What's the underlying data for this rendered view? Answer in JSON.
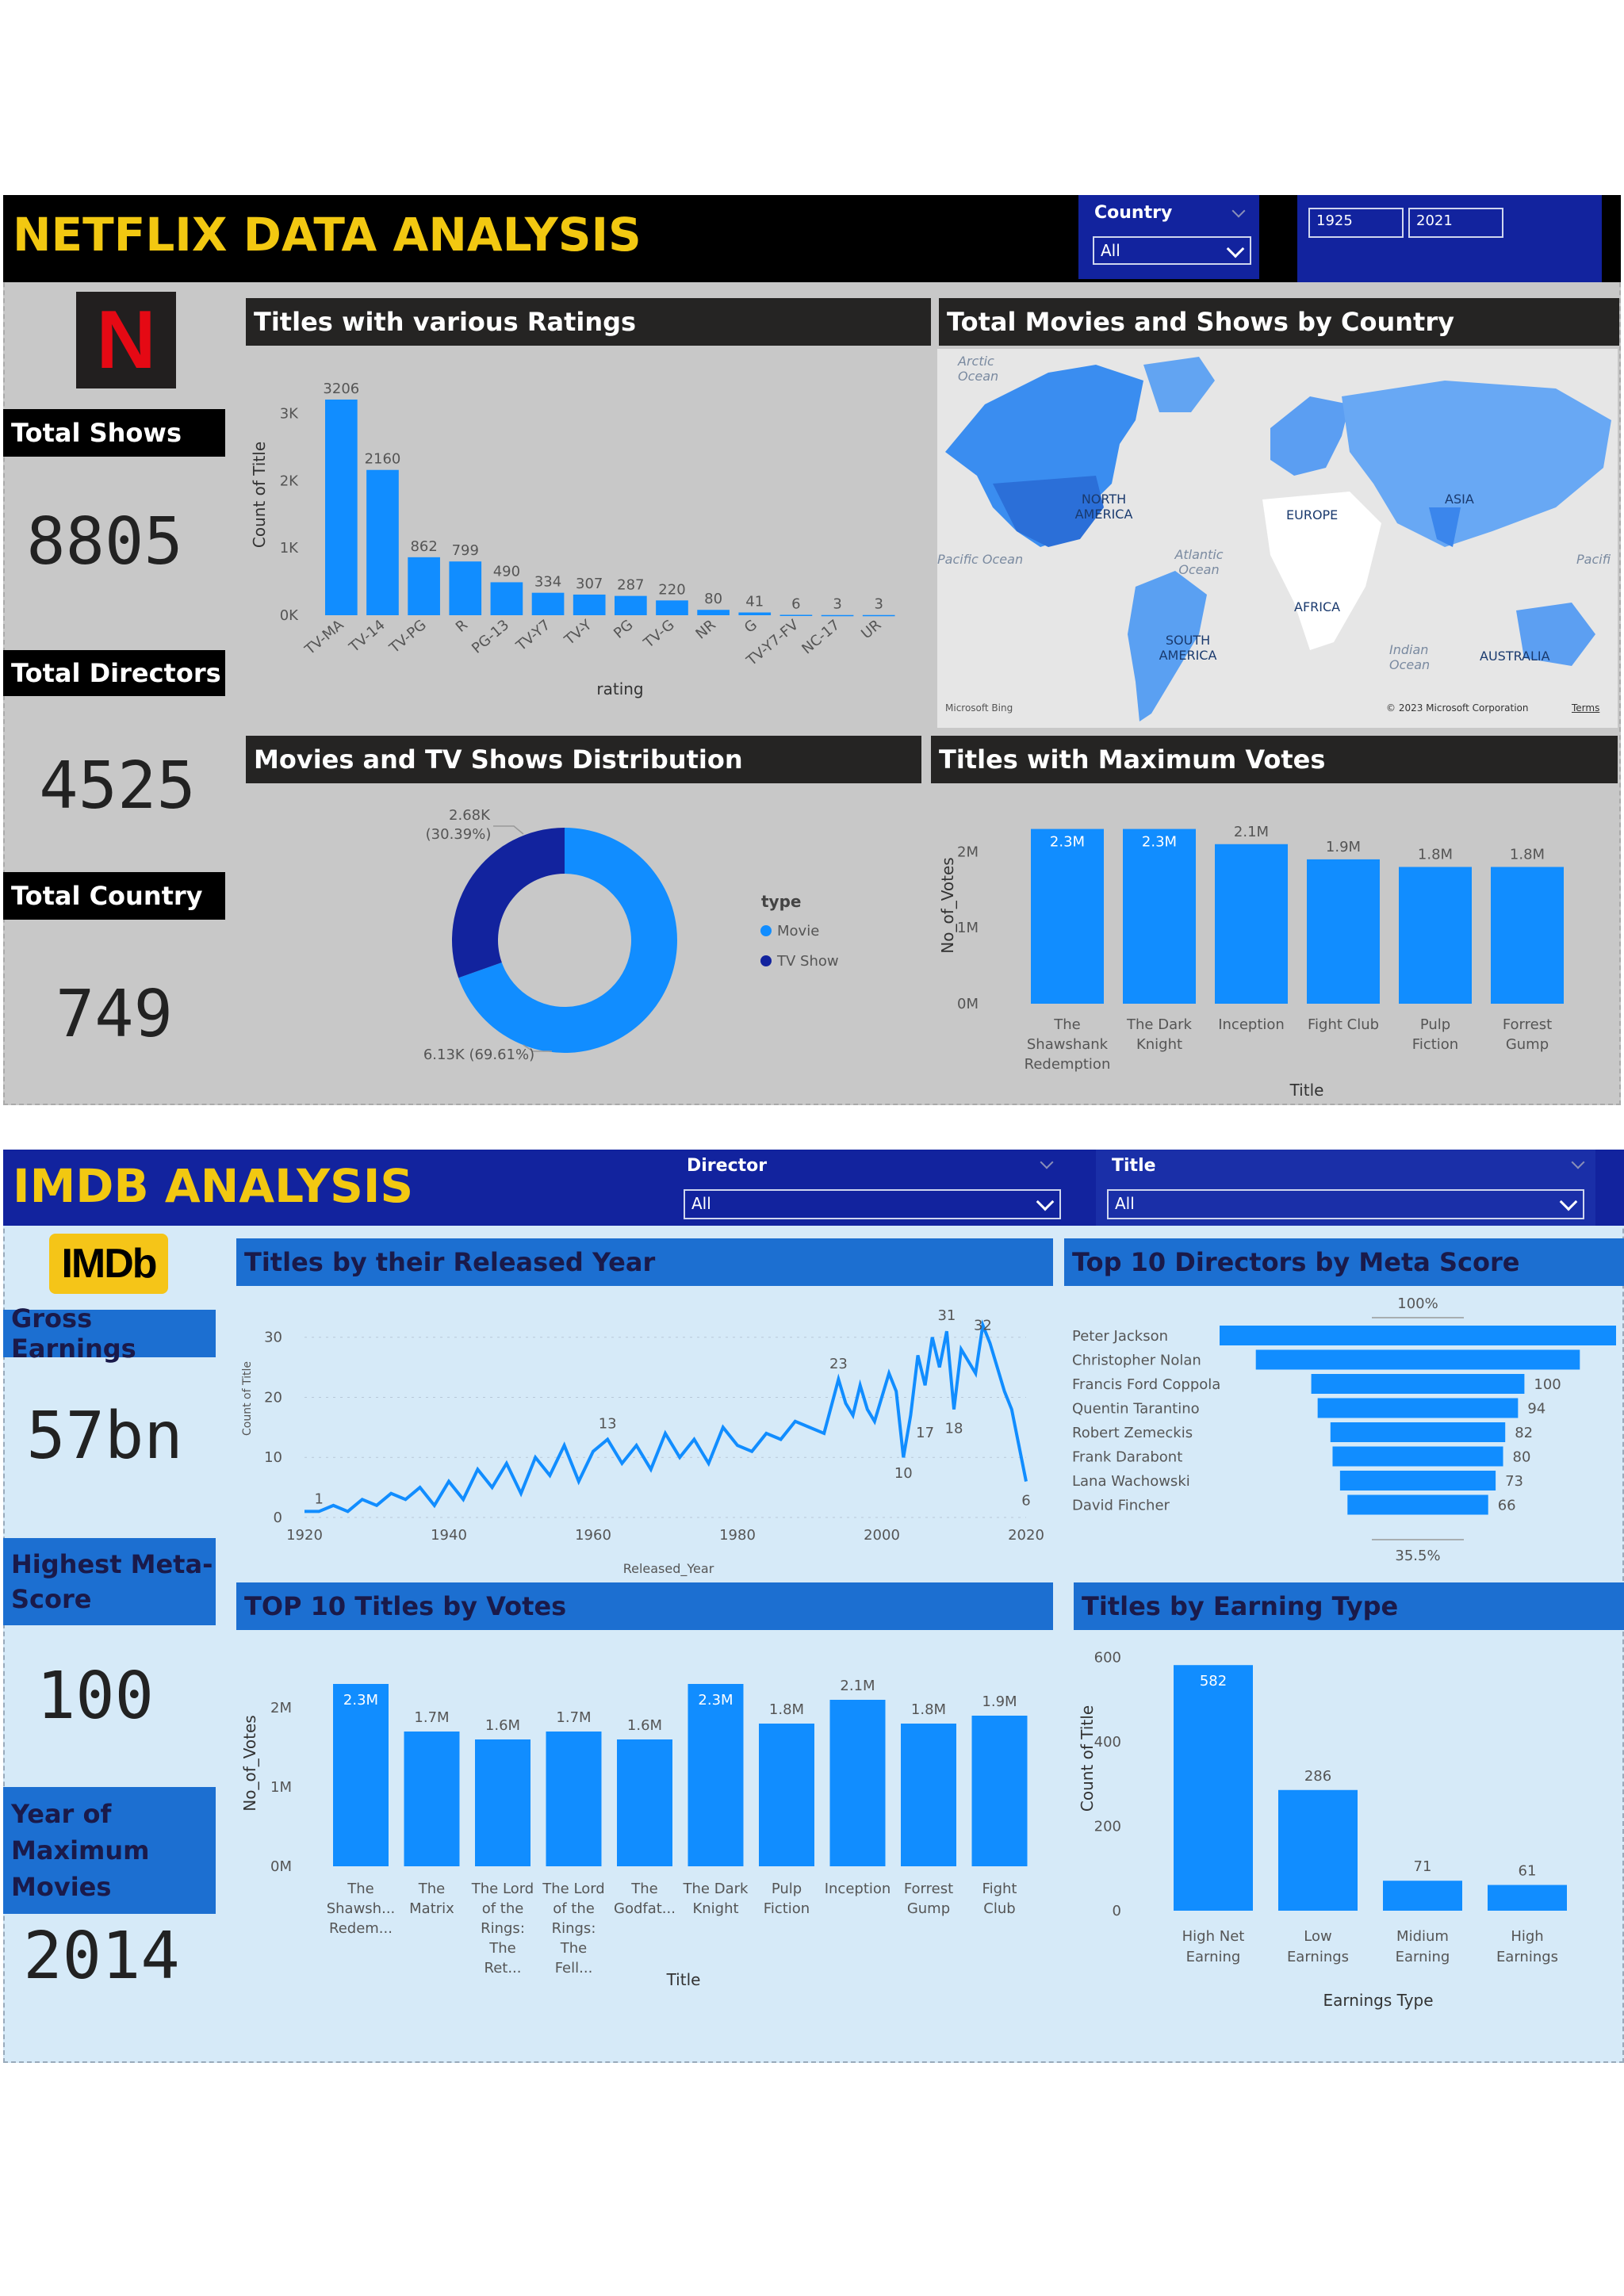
{
  "netflix": {
    "title": "NETFLIX DATA ANALYSIS",
    "country_slicer": {
      "title": "Country",
      "value": "All"
    },
    "year_slicer": {
      "from": "1925",
      "to": "2021"
    },
    "logo_letter": "N",
    "kpis": [
      {
        "label": "Total Shows",
        "value": "8805"
      },
      {
        "label": "Total Directors",
        "value": "4525"
      },
      {
        "label": "Total Country",
        "value": "749"
      }
    ],
    "ratings_chart": {
      "title": "Titles with various Ratings",
      "xlabel": "rating",
      "ylabel": "Count of Title",
      "yticks": [
        "0K",
        "1K",
        "2K",
        "3K"
      ]
    },
    "map": {
      "title": "Total Movies and Shows by Country",
      "labels": [
        "Arctic Ocean",
        "NORTH AMERICA",
        "EUROPE",
        "ASIA",
        "Atlantic Ocean",
        "AFRICA",
        "SOUTH AMERICA",
        "Indian Ocean",
        "AUSTRALIA",
        "Pacific Ocean",
        "Pacifi"
      ],
      "attribution": "© 2023 Microsoft Corporation",
      "terms": "Terms",
      "bing": "Microsoft Bing"
    },
    "donut": {
      "title": "Movies and TV Shows Distribution",
      "legend_title": "type",
      "label_tv": "2.68K",
      "label_tv_pct": "(30.39%)",
      "label_movie": "6.13K (69.61%)"
    },
    "votes_chart": {
      "title": "Titles with Maximum Votes",
      "xlabel": "Title",
      "ylabel": "No_of_Votes",
      "yticks": [
        "0M",
        "1M",
        "2M"
      ]
    }
  },
  "imdb": {
    "title": "IMDB ANALYSIS",
    "director_slicer": {
      "title": "Director",
      "value": "All"
    },
    "title_slicer": {
      "title": "Title",
      "value": "All"
    },
    "logo_text": "IMDb",
    "kpis": [
      {
        "label": "Gross Earnings",
        "value": "57bn"
      },
      {
        "label": "Highest Meta-Score",
        "value": "100"
      },
      {
        "label": "Year of Maximum Movies",
        "value": "2014"
      }
    ],
    "year_chart": {
      "title": "Titles by their Released Year",
      "xlabel": "Released_Year",
      "ylabel": "Count of Title",
      "yticks": [
        "0",
        "10",
        "20",
        "30"
      ],
      "xticks": [
        "1920",
        "1940",
        "1960",
        "1980",
        "2000",
        "2020"
      ]
    },
    "funnel": {
      "title": "Top 10 Directors by Meta Score",
      "top_pct": "100%",
      "bottom_pct": "35.5%"
    },
    "top_votes": {
      "title": "TOP 10 Titles by Votes",
      "xlabel": "Title",
      "ylabel": "No_of_Votes",
      "yticks": [
        "0M",
        "1M",
        "2M"
      ]
    },
    "earnings": {
      "title": "Titles by Earning Type",
      "xlabel": "Earnings Type",
      "ylabel": "Count of Title",
      "yticks": [
        "0",
        "200",
        "400",
        "600"
      ]
    }
  },
  "colors": {
    "bar": "#118dff",
    "dark_blue": "#12239e",
    "netflix_bg": "#c8c8c8",
    "imdb_bg": "#d6eaf8",
    "title_yellow": "#f2c811"
  },
  "chart_data": [
    {
      "type": "bar",
      "title": "Titles with various Ratings",
      "xlabel": "rating",
      "ylabel": "Count of Title",
      "categories": [
        "TV-MA",
        "TV-14",
        "TV-PG",
        "R",
        "PG-13",
        "TV-Y7",
        "TV-Y",
        "PG",
        "TV-G",
        "NR",
        "G",
        "TV-Y7-FV",
        "NC-17",
        "UR"
      ],
      "values": [
        3206,
        2160,
        862,
        799,
        490,
        334,
        307,
        287,
        220,
        80,
        41,
        6,
        3,
        3
      ],
      "ylim": [
        0,
        3300
      ]
    },
    {
      "type": "pie",
      "title": "Movies and TV Shows Distribution",
      "categories": [
        "Movie",
        "TV Show"
      ],
      "values": [
        6130,
        2680
      ],
      "labels": [
        "6.13K (69.61%)",
        "2.68K (30.39%)"
      ]
    },
    {
      "type": "bar",
      "title": "Titles with Maximum Votes",
      "xlabel": "Title",
      "ylabel": "No_of_Votes",
      "categories": [
        "The Shawshank Redemption",
        "The Dark Knight",
        "Inception",
        "Fight Club",
        "Pulp Fiction",
        "Forrest Gump"
      ],
      "values": [
        2.3,
        2.3,
        2.1,
        1.9,
        1.8,
        1.8
      ],
      "labels": [
        "2.3M",
        "2.3M",
        "2.1M",
        "1.9M",
        "1.8M",
        "1.8M"
      ],
      "ylim": [
        0,
        2.4
      ]
    },
    {
      "type": "line",
      "title": "Titles by their Released Year",
      "xlabel": "Released_Year",
      "ylabel": "Count of Title",
      "x": [
        1920,
        1922,
        1924,
        1926,
        1928,
        1930,
        1932,
        1934,
        1936,
        1938,
        1940,
        1942,
        1944,
        1946,
        1948,
        1950,
        1952,
        1954,
        1956,
        1958,
        1960,
        1962,
        1964,
        1966,
        1968,
        1970,
        1972,
        1974,
        1976,
        1978,
        1980,
        1982,
        1984,
        1986,
        1988,
        1990,
        1992,
        1994,
        1995,
        1996,
        1997,
        1998,
        1999,
        2000,
        2001,
        2002,
        2003,
        2004,
        2005,
        2006,
        2007,
        2008,
        2009,
        2010,
        2011,
        2012,
        2013,
        2014,
        2015,
        2016,
        2017,
        2018,
        2019,
        2020
      ],
      "y": [
        1,
        1,
        2,
        1,
        3,
        2,
        4,
        3,
        5,
        2,
        6,
        3,
        8,
        5,
        9,
        4,
        10,
        7,
        12,
        6,
        11,
        13,
        9,
        12,
        8,
        14,
        10,
        13,
        9,
        15,
        12,
        11,
        14,
        13,
        16,
        15,
        14,
        23,
        19,
        17,
        22,
        18,
        16,
        20,
        24,
        21,
        10,
        17,
        27,
        22,
        30,
        25,
        31,
        18,
        28,
        26,
        24,
        32,
        29,
        25,
        21,
        18,
        12,
        6
      ],
      "xlim": [
        1920,
        2020
      ],
      "ylim": [
        0,
        33
      ]
    },
    {
      "type": "bar",
      "title": "Top 10 Directors by Meta Score",
      "categories": [
        "Peter Jackson",
        "Christopher Nolan",
        "Francis Ford Coppola",
        "Quentin Tarantino",
        "Robert Zemeckis",
        "Frank Darabont",
        "Lana Wachowski",
        "David Fincher"
      ],
      "values": [
        186,
        152,
        100,
        94,
        82,
        80,
        73,
        66
      ],
      "labels": [
        "",
        "",
        "100",
        "94",
        "82",
        "80",
        "73",
        "66"
      ]
    },
    {
      "type": "bar",
      "title": "TOP 10 Titles by Votes",
      "xlabel": "Title",
      "ylabel": "No_of_Votes",
      "categories": [
        "The Shawsh... Redem...",
        "The Matrix",
        "The Lord of the Rings: The Ret...",
        "The Lord of the Rings: The Fell...",
        "The Godfat...",
        "The Dark Knight",
        "Pulp Fiction",
        "Inception",
        "Forrest Gump",
        "Fight Club"
      ],
      "values": [
        2.3,
        1.7,
        1.6,
        1.7,
        1.6,
        2.3,
        1.8,
        2.1,
        1.8,
        1.9
      ],
      "labels": [
        "2.3M",
        "1.7M",
        "1.6M",
        "1.7M",
        "1.6M",
        "2.3M",
        "1.8M",
        "2.1M",
        "1.8M",
        "1.9M"
      ],
      "ylim": [
        0,
        2.4
      ]
    },
    {
      "type": "bar",
      "title": "Titles by Earning Type",
      "xlabel": "Earnings Type",
      "ylabel": "Count of Title",
      "categories": [
        "High Net Earning",
        "Low Earnings",
        "Midium Earning",
        "High Earnings"
      ],
      "values": [
        582,
        286,
        71,
        61
      ],
      "ylim": [
        0,
        620
      ]
    }
  ]
}
